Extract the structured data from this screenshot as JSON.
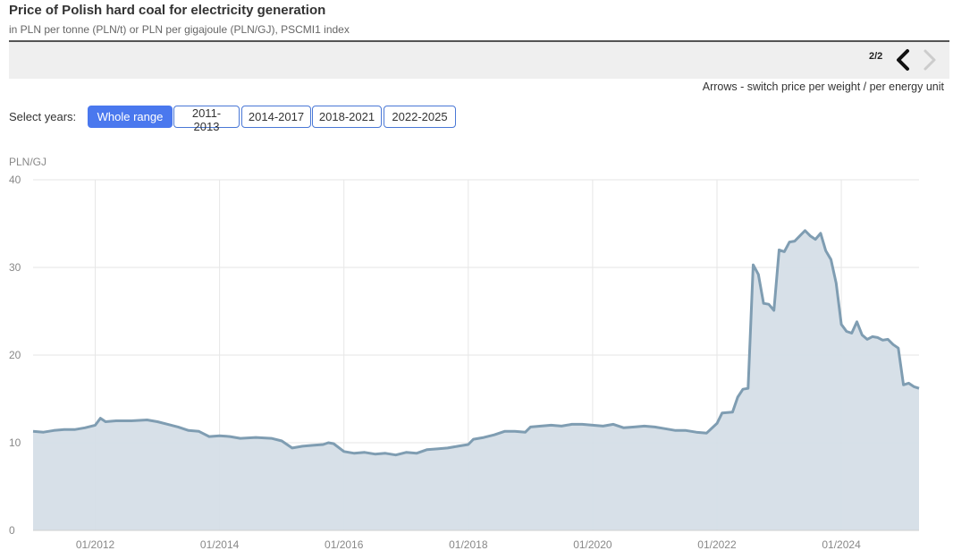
{
  "header": {
    "title": "Price of Polish hard coal for electricity generation",
    "subtitle": "in PLN per tonne (PLN/t) or PLN per gigajoule (PLN/GJ), PSCMI1 index"
  },
  "pager": {
    "label": "2/2",
    "left_icon": "chevron-left-icon",
    "right_icon": "chevron-right-icon"
  },
  "hint": "Arrows - switch price per weight / per energy unit",
  "year_select": {
    "label": "Select years:",
    "options": [
      "Whole range",
      "2011-2013",
      "2014-2017",
      "2018-2021",
      "2022-2025"
    ],
    "selected": "Whole range"
  },
  "colors": {
    "accent": "#4a78ee",
    "line": "#7f9db2",
    "area": "#d5dee7"
  },
  "chart_data": {
    "type": "area",
    "ylabel": "PLN/GJ",
    "ylim": [
      0,
      40
    ],
    "yticks": [
      0,
      10,
      20,
      30,
      40
    ],
    "xlim": [
      "2011-01",
      "2025-04"
    ],
    "xticks": [
      "01/2012",
      "01/2014",
      "01/2016",
      "01/2018",
      "01/2020",
      "01/2022",
      "01/2024"
    ],
    "grid": true,
    "series": [
      {
        "points": [
          [
            "2011-01",
            11.3
          ],
          [
            "2011-03",
            11.2
          ],
          [
            "2011-05",
            11.4
          ],
          [
            "2011-07",
            11.5
          ],
          [
            "2011-09",
            11.5
          ],
          [
            "2011-11",
            11.7
          ],
          [
            "2012-01",
            12.0
          ],
          [
            "2012-02",
            12.8
          ],
          [
            "2012-03",
            12.4
          ],
          [
            "2012-05",
            12.5
          ],
          [
            "2012-08",
            12.5
          ],
          [
            "2012-11",
            12.6
          ],
          [
            "2013-01",
            12.4
          ],
          [
            "2013-03",
            12.1
          ],
          [
            "2013-05",
            11.8
          ],
          [
            "2013-07",
            11.4
          ],
          [
            "2013-09",
            11.3
          ],
          [
            "2013-10",
            11.0
          ],
          [
            "2013-11",
            10.7
          ],
          [
            "2014-01",
            10.8
          ],
          [
            "2014-03",
            10.7
          ],
          [
            "2014-05",
            10.5
          ],
          [
            "2014-08",
            10.6
          ],
          [
            "2014-11",
            10.5
          ],
          [
            "2015-01",
            10.2
          ],
          [
            "2015-03",
            9.4
          ],
          [
            "2015-05",
            9.6
          ],
          [
            "2015-07",
            9.7
          ],
          [
            "2015-09",
            9.8
          ],
          [
            "2015-10",
            10.0
          ],
          [
            "2015-11",
            9.9
          ],
          [
            "2016-01",
            9.0
          ],
          [
            "2016-03",
            8.8
          ],
          [
            "2016-05",
            8.9
          ],
          [
            "2016-07",
            8.7
          ],
          [
            "2016-09",
            8.8
          ],
          [
            "2016-11",
            8.6
          ],
          [
            "2017-01",
            8.9
          ],
          [
            "2017-03",
            8.8
          ],
          [
            "2017-05",
            9.2
          ],
          [
            "2017-07",
            9.3
          ],
          [
            "2017-09",
            9.4
          ],
          [
            "2017-11",
            9.6
          ],
          [
            "2018-01",
            9.8
          ],
          [
            "2018-02",
            10.4
          ],
          [
            "2018-04",
            10.6
          ],
          [
            "2018-06",
            10.9
          ],
          [
            "2018-08",
            11.3
          ],
          [
            "2018-10",
            11.3
          ],
          [
            "2018-12",
            11.2
          ],
          [
            "2019-01",
            11.8
          ],
          [
            "2019-03",
            11.9
          ],
          [
            "2019-05",
            12.0
          ],
          [
            "2019-07",
            11.9
          ],
          [
            "2019-09",
            12.1
          ],
          [
            "2019-11",
            12.1
          ],
          [
            "2020-01",
            12.0
          ],
          [
            "2020-03",
            11.9
          ],
          [
            "2020-05",
            12.1
          ],
          [
            "2020-07",
            11.7
          ],
          [
            "2020-09",
            11.8
          ],
          [
            "2020-11",
            11.9
          ],
          [
            "2021-01",
            11.8
          ],
          [
            "2021-03",
            11.6
          ],
          [
            "2021-05",
            11.4
          ],
          [
            "2021-07",
            11.4
          ],
          [
            "2021-09",
            11.2
          ],
          [
            "2021-11",
            11.1
          ],
          [
            "2022-01",
            12.2
          ],
          [
            "2022-02",
            13.4
          ],
          [
            "2022-04",
            13.5
          ],
          [
            "2022-05",
            15.2
          ],
          [
            "2022-06",
            16.1
          ],
          [
            "2022-07",
            16.2
          ],
          [
            "2022-08",
            30.3
          ],
          [
            "2022-09",
            29.2
          ],
          [
            "2022-10",
            25.9
          ],
          [
            "2022-11",
            25.8
          ],
          [
            "2022-12",
            25.1
          ],
          [
            "2023-01",
            32.0
          ],
          [
            "2023-02",
            31.8
          ],
          [
            "2023-03",
            32.9
          ],
          [
            "2023-04",
            33.0
          ],
          [
            "2023-05",
            33.6
          ],
          [
            "2023-06",
            34.2
          ],
          [
            "2023-07",
            33.6
          ],
          [
            "2023-08",
            33.2
          ],
          [
            "2023-09",
            33.9
          ],
          [
            "2023-10",
            31.9
          ],
          [
            "2023-11",
            30.9
          ],
          [
            "2023-12",
            28.2
          ],
          [
            "2024-01",
            23.5
          ],
          [
            "2024-02",
            22.7
          ],
          [
            "2024-03",
            22.5
          ],
          [
            "2024-04",
            23.8
          ],
          [
            "2024-05",
            22.3
          ],
          [
            "2024-06",
            21.8
          ],
          [
            "2024-07",
            22.1
          ],
          [
            "2024-08",
            22.0
          ],
          [
            "2024-09",
            21.7
          ],
          [
            "2024-10",
            21.8
          ],
          [
            "2024-11",
            21.2
          ],
          [
            "2024-12",
            20.8
          ],
          [
            "2025-01",
            16.6
          ],
          [
            "2025-02",
            16.8
          ],
          [
            "2025-03",
            16.4
          ],
          [
            "2025-04",
            16.2
          ]
        ]
      }
    ]
  }
}
